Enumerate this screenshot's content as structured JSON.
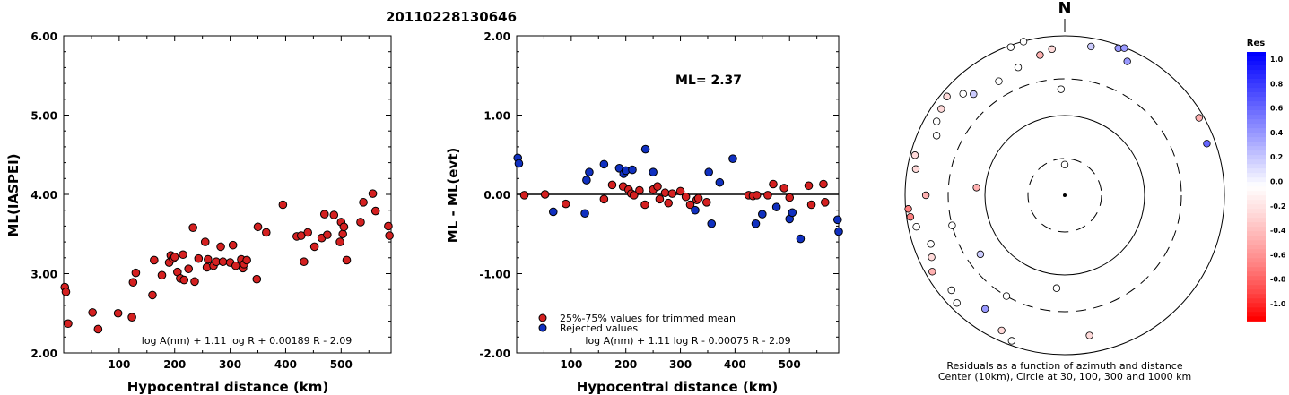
{
  "figure": {
    "event_id": "20110228130646"
  },
  "chart_data": [
    {
      "type": "scatter",
      "xlabel": "Hypocentral distance (km)",
      "ylabel": "ML(IASPEI)",
      "xlim": [
        0,
        590
      ],
      "ylim": [
        2.0,
        6.0
      ],
      "xticks": [
        100,
        200,
        300,
        400,
        500
      ],
      "xtick_labels": [
        "100",
        "200",
        "300",
        "400",
        "500"
      ],
      "yticks": [
        2.0,
        3.0,
        4.0,
        5.0,
        6.0
      ],
      "ytick_labels": [
        "2.00",
        "3.00",
        "4.00",
        "5.00",
        "6.00"
      ],
      "formula": "log A(nm) + 1.11 log R + 0.00189 R - 2.09",
      "marker_color": "#d42020",
      "points": [
        [
          2,
          2.83
        ],
        [
          4,
          2.77
        ],
        [
          8,
          2.37
        ],
        [
          52,
          2.51
        ],
        [
          62,
          2.3
        ],
        [
          98,
          2.5
        ],
        [
          123,
          2.45
        ],
        [
          125,
          2.89
        ],
        [
          130,
          3.01
        ],
        [
          160,
          2.73
        ],
        [
          163,
          3.17
        ],
        [
          177,
          2.98
        ],
        [
          190,
          3.14
        ],
        [
          193,
          3.23
        ],
        [
          197,
          3.19
        ],
        [
          200,
          3.21
        ],
        [
          205,
          3.02
        ],
        [
          210,
          2.94
        ],
        [
          215,
          3.24
        ],
        [
          217,
          2.92
        ],
        [
          225,
          3.06
        ],
        [
          233,
          3.58
        ],
        [
          236,
          2.9
        ],
        [
          243,
          3.19
        ],
        [
          255,
          3.4
        ],
        [
          258,
          3.08
        ],
        [
          260,
          3.18
        ],
        [
          270,
          3.1
        ],
        [
          275,
          3.15
        ],
        [
          283,
          3.34
        ],
        [
          287,
          3.15
        ],
        [
          300,
          3.14
        ],
        [
          305,
          3.36
        ],
        [
          310,
          3.1
        ],
        [
          320,
          3.18
        ],
        [
          323,
          3.07
        ],
        [
          325,
          3.12
        ],
        [
          330,
          3.17
        ],
        [
          348,
          2.93
        ],
        [
          350,
          3.59
        ],
        [
          365,
          3.52
        ],
        [
          395,
          3.87
        ],
        [
          420,
          3.47
        ],
        [
          428,
          3.48
        ],
        [
          433,
          3.15
        ],
        [
          440,
          3.52
        ],
        [
          452,
          3.34
        ],
        [
          465,
          3.45
        ],
        [
          470,
          3.75
        ],
        [
          475,
          3.49
        ],
        [
          487,
          3.74
        ],
        [
          498,
          3.4
        ],
        [
          500,
          3.65
        ],
        [
          503,
          3.5
        ],
        [
          505,
          3.59
        ],
        [
          510,
          3.17
        ],
        [
          535,
          3.65
        ],
        [
          540,
          3.9
        ],
        [
          557,
          4.01
        ],
        [
          562,
          3.79
        ],
        [
          585,
          3.6
        ],
        [
          587,
          3.48
        ]
      ]
    },
    {
      "type": "scatter",
      "xlabel": "Hypocentral distance (km)",
      "ylabel": "ML - ML(evt)",
      "xlim": [
        0,
        590
      ],
      "ylim": [
        -2.0,
        2.0
      ],
      "xticks": [
        100,
        200,
        300,
        400,
        500
      ],
      "xtick_labels": [
        "100",
        "200",
        "300",
        "400",
        "500"
      ],
      "yticks": [
        -2.0,
        -1.0,
        0.0,
        1.0,
        2.0
      ],
      "ytick_labels": [
        "-2.00",
        "-1.00",
        "0.00",
        "1.00",
        "2.00"
      ],
      "annotation": "ML= 2.37",
      "formula": "log A(nm) + 1.11 log R - 0.00075 R - 2.09",
      "legend": [
        "25%-75% values for trimmed mean",
        "Rejected values"
      ],
      "legend_placement": "bottom-left",
      "series_colors": [
        "#d42020",
        "#1030c0"
      ],
      "used_points": [
        [
          14,
          -0.01
        ],
        [
          52,
          0.0
        ],
        [
          90,
          -0.12
        ],
        [
          160,
          -0.06
        ],
        [
          175,
          0.12
        ],
        [
          195,
          0.1
        ],
        [
          205,
          0.06
        ],
        [
          210,
          0.01
        ],
        [
          215,
          -0.01
        ],
        [
          225,
          0.05
        ],
        [
          235,
          -0.13
        ],
        [
          250,
          0.06
        ],
        [
          258,
          0.1
        ],
        [
          262,
          -0.06
        ],
        [
          272,
          0.02
        ],
        [
          278,
          -0.11
        ],
        [
          285,
          0.01
        ],
        [
          300,
          0.04
        ],
        [
          310,
          -0.03
        ],
        [
          318,
          -0.13
        ],
        [
          330,
          -0.07
        ],
        [
          333,
          -0.05
        ],
        [
          348,
          -0.1
        ],
        [
          425,
          -0.01
        ],
        [
          433,
          -0.02
        ],
        [
          440,
          -0.01
        ],
        [
          460,
          -0.01
        ],
        [
          470,
          0.13
        ],
        [
          490,
          0.08
        ],
        [
          500,
          -0.04
        ],
        [
          535,
          0.11
        ],
        [
          540,
          -0.13
        ],
        [
          562,
          0.13
        ],
        [
          565,
          -0.1
        ]
      ],
      "rejected_points": [
        [
          2,
          0.46
        ],
        [
          4,
          0.39
        ],
        [
          67,
          -0.22
        ],
        [
          125,
          -0.24
        ],
        [
          128,
          0.18
        ],
        [
          133,
          0.28
        ],
        [
          160,
          0.38
        ],
        [
          188,
          0.33
        ],
        [
          196,
          0.26
        ],
        [
          200,
          0.3
        ],
        [
          212,
          0.31
        ],
        [
          236,
          0.57
        ],
        [
          250,
          0.28
        ],
        [
          327,
          -0.2
        ],
        [
          352,
          0.28
        ],
        [
          357,
          -0.37
        ],
        [
          372,
          0.15
        ],
        [
          396,
          0.45
        ],
        [
          438,
          -0.37
        ],
        [
          450,
          -0.25
        ],
        [
          476,
          -0.16
        ],
        [
          500,
          -0.31
        ],
        [
          505,
          -0.23
        ],
        [
          520,
          -0.56
        ],
        [
          588,
          -0.32
        ],
        [
          590,
          -0.47
        ]
      ]
    },
    {
      "type": "polar",
      "north_label": "N",
      "caption_line1": "Residuals as a function of azimuth and distance",
      "caption_line2": "Center (10km), Circle at 30, 100, 300 and 1000 km",
      "rings_km": [
        30,
        100,
        300,
        1000
      ],
      "color_scale": {
        "title": "Res",
        "levels": [
          "1.0",
          "0.8",
          "0.6",
          "0.4",
          "0.2",
          "0.0",
          "-0.2",
          "-0.4",
          "-0.6",
          "-0.8",
          "-1.0"
        ],
        "colors": [
          "#0000ff",
          "#3333ff",
          "#6666ff",
          "#9999ff",
          "#ccccff",
          "#ffffff",
          "#ffdada",
          "#ffb0b0",
          "#ff8080",
          "#ff4848",
          "#ff0000"
        ]
      },
      "stations": [
        {
          "az": 0,
          "dist": 25,
          "res": 0.0
        },
        {
          "az": 358,
          "dist": 220,
          "res": 0.0
        },
        {
          "az": 355,
          "dist": 700,
          "res": -0.1
        },
        {
          "az": 350,
          "dist": 620,
          "res": -0.3
        },
        {
          "az": 20,
          "dist": 920,
          "res": 0.4
        },
        {
          "az": 22,
          "dist": 980,
          "res": 0.5
        },
        {
          "az": 25,
          "dist": 720,
          "res": 0.3
        },
        {
          "az": 60,
          "dist": 880,
          "res": -0.4
        },
        {
          "az": 70,
          "dist": 790,
          "res": 0.6
        },
        {
          "az": 340,
          "dist": 520,
          "res": 0.0
        },
        {
          "az": 330,
          "dist": 460,
          "res": 0.0
        },
        {
          "az": 318,
          "dist": 520,
          "res": 0.2
        },
        {
          "az": 315,
          "dist": 640,
          "res": 0.1
        },
        {
          "az": 305,
          "dist": 780,
          "res": -0.2
        },
        {
          "az": 300,
          "dist": 720,
          "res": 0.1
        },
        {
          "az": 310,
          "dist": 850,
          "res": -0.1
        },
        {
          "az": 295,
          "dist": 600,
          "res": 0.0
        },
        {
          "az": 285,
          "dist": 880,
          "res": -0.2
        },
        {
          "az": 280,
          "dist": 790,
          "res": -0.1
        },
        {
          "az": 270,
          "dist": 560,
          "res": -0.3
        },
        {
          "az": 265,
          "dist": 930,
          "res": -0.5
        },
        {
          "az": 262,
          "dist": 900,
          "res": -0.5
        },
        {
          "az": 258,
          "dist": 800,
          "res": 0.1
        },
        {
          "az": 250,
          "dist": 620,
          "res": 0.0
        },
        {
          "az": 245,
          "dist": 700,
          "res": -0.2
        },
        {
          "az": 240,
          "dist": 830,
          "res": -0.3
        },
        {
          "az": 230,
          "dist": 720,
          "res": 0.0
        },
        {
          "az": 225,
          "dist": 820,
          "res": 0.0
        },
        {
          "az": 215,
          "dist": 560,
          "res": 0.3
        },
        {
          "az": 205,
          "dist": 750,
          "res": -0.1
        },
        {
          "az": 200,
          "dist": 880,
          "res": 0.0
        },
        {
          "az": 185,
          "dist": 150,
          "res": 0.0
        },
        {
          "az": 210,
          "dist": 300,
          "res": 0.0
        },
        {
          "az": 170,
          "dist": 620,
          "res": -0.2
        },
        {
          "az": 255,
          "dist": 300,
          "res": 0.0
        },
        {
          "az": 275,
          "dist": 130,
          "res": -0.3
        },
        {
          "az": 235,
          "dist": 200,
          "res": 0.2
        },
        {
          "az": 340,
          "dist": 950,
          "res": 0.0
        },
        {
          "az": 345,
          "dist": 990,
          "res": 0.0
        },
        {
          "az": 10,
          "dist": 790,
          "res": 0.2
        }
      ]
    }
  ]
}
